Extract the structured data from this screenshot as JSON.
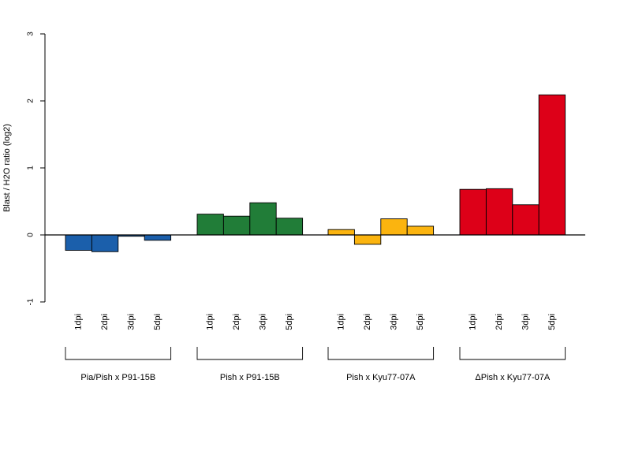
{
  "chart_data": {
    "type": "bar",
    "title": "",
    "xlabel": "",
    "ylabel": "Blast / H2O ratio (log2)",
    "ylim": [
      -1,
      3
    ],
    "yticks": [
      -1,
      0,
      1,
      2,
      3
    ],
    "grid": false,
    "legend": "none",
    "groups": [
      {
        "name": "Pia/Pish x P91-15B",
        "color": "#1b5fab",
        "categories": [
          "1dpi",
          "2dpi",
          "3dpi",
          "5dpi"
        ],
        "values": [
          -0.23,
          -0.25,
          -0.02,
          -0.08
        ]
      },
      {
        "name": "Pish x P91-15B",
        "color": "#217d38",
        "categories": [
          "1dpi",
          "2dpi",
          "3dpi",
          "5dpi"
        ],
        "values": [
          0.31,
          0.28,
          0.48,
          0.25
        ]
      },
      {
        "name": "Pish x Kyu77-07A",
        "color": "#fbb40f",
        "categories": [
          "1dpi",
          "2dpi",
          "3dpi",
          "5dpi"
        ],
        "values": [
          0.08,
          -0.14,
          0.24,
          0.13
        ]
      },
      {
        "name": "ΔPish x Kyu77-07A",
        "color": "#dd0018",
        "categories": [
          "1dpi",
          "2dpi",
          "3dpi",
          "5dpi"
        ],
        "values": [
          0.68,
          0.69,
          0.45,
          2.09
        ]
      }
    ]
  }
}
